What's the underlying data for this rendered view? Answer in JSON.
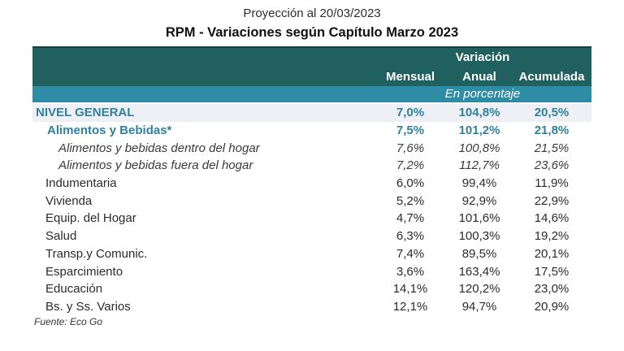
{
  "page": {
    "supertitle": "Proyección al 20/03/2023",
    "title": "RPM - Variaciones según Capítulo Marzo 2023",
    "source": "Fuente: Eco Go"
  },
  "table": {
    "group_header": "Variación",
    "columns": [
      "Mensual",
      "Anual",
      "Acumulada"
    ],
    "unit_band": "En porcentaje",
    "rows": [
      {
        "label": "NIVEL GENERAL",
        "mensual": "7,0%",
        "anual": "104,8%",
        "acumulada": "20,5%",
        "style": "general"
      },
      {
        "label": "Alimentos y Bebidas*",
        "mensual": "7,5%",
        "anual": "101,2%",
        "acumulada": "21,8%",
        "style": "category-teal"
      },
      {
        "label": "Alimentos y bebidas dentro del hogar",
        "mensual": "7,6%",
        "anual": "100,8%",
        "acumulada": "21,5%",
        "style": "sub-italic"
      },
      {
        "label": "Alimentos y bebidas fuera del hogar",
        "mensual": "7,2%",
        "anual": "112,7%",
        "acumulada": "23,6%",
        "style": "sub-italic"
      },
      {
        "label": "Indumentaria",
        "mensual": "6,0%",
        "anual": "99,4%",
        "acumulada": "11,9%",
        "style": "category"
      },
      {
        "label": "Vivienda",
        "mensual": "5,2%",
        "anual": "92,9%",
        "acumulada": "22,9%",
        "style": "category"
      },
      {
        "label": "Equip. del Hogar",
        "mensual": "4,7%",
        "anual": "101,6%",
        "acumulada": "14,6%",
        "style": "category"
      },
      {
        "label": "Salud",
        "mensual": "6,3%",
        "anual": "100,3%",
        "acumulada": "19,2%",
        "style": "category"
      },
      {
        "label": "Transp.y Comunic.",
        "mensual": "7,4%",
        "anual": "89,5%",
        "acumulada": "20,1%",
        "style": "category"
      },
      {
        "label": "Esparcimiento",
        "mensual": "3,6%",
        "anual": "163,4%",
        "acumulada": "17,5%",
        "style": "category"
      },
      {
        "label": "Educación",
        "mensual": "14,1%",
        "anual": "120,2%",
        "acumulada": "23,0%",
        "style": "category"
      },
      {
        "label": "Bs. y Ss. Varios",
        "mensual": "12,1%",
        "anual": "94,7%",
        "acumulada": "20,9%",
        "style": "category"
      }
    ]
  },
  "colors": {
    "header_dark_teal": "#20605f",
    "header_top_line": "#16403f",
    "unit_band_teal": "#2e8ca4",
    "teal_text": "#2e81a0",
    "highlight_row_bg": "#eef0f5",
    "body_text": "#2b2b2b",
    "background": "#ffffff"
  },
  "chart_data": {
    "type": "table",
    "title": "RPM - Variaciones según Capítulo Marzo 2023",
    "subtitle": "Proyección al 20/03/2023",
    "unit": "En porcentaje",
    "columns": [
      "Mensual",
      "Anual",
      "Acumulada"
    ],
    "rows": [
      {
        "category": "NIVEL GENERAL",
        "mensual": 7.0,
        "anual": 104.8,
        "acumulada": 20.5
      },
      {
        "category": "Alimentos y Bebidas*",
        "mensual": 7.5,
        "anual": 101.2,
        "acumulada": 21.8
      },
      {
        "category": "Alimentos y bebidas dentro del hogar",
        "mensual": 7.6,
        "anual": 100.8,
        "acumulada": 21.5
      },
      {
        "category": "Alimentos y bebidas fuera del hogar",
        "mensual": 7.2,
        "anual": 112.7,
        "acumulada": 23.6
      },
      {
        "category": "Indumentaria",
        "mensual": 6.0,
        "anual": 99.4,
        "acumulada": 11.9
      },
      {
        "category": "Vivienda",
        "mensual": 5.2,
        "anual": 92.9,
        "acumulada": 22.9
      },
      {
        "category": "Equip. del Hogar",
        "mensual": 4.7,
        "anual": 101.6,
        "acumulada": 14.6
      },
      {
        "category": "Salud",
        "mensual": 6.3,
        "anual": 100.3,
        "acumulada": 19.2
      },
      {
        "category": "Transp.y Comunic.",
        "mensual": 7.4,
        "anual": 89.5,
        "acumulada": 20.1
      },
      {
        "category": "Esparcimiento",
        "mensual": 3.6,
        "anual": 163.4,
        "acumulada": 17.5
      },
      {
        "category": "Educación",
        "mensual": 14.1,
        "anual": 120.2,
        "acumulada": 23.0
      },
      {
        "category": "Bs. y Ss. Varios",
        "mensual": 12.1,
        "anual": 94.7,
        "acumulada": 20.9
      }
    ],
    "source": "Fuente: Eco Go"
  }
}
